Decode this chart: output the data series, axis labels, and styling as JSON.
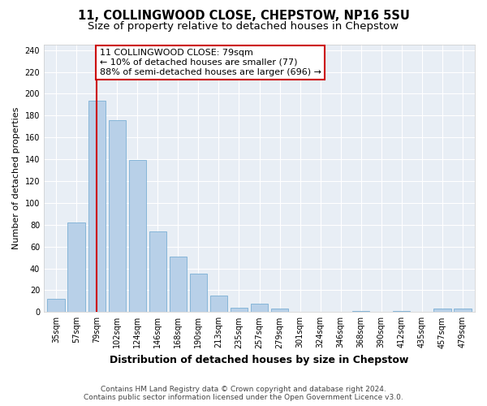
{
  "title": "11, COLLINGWOOD CLOSE, CHEPSTOW, NP16 5SU",
  "subtitle": "Size of property relative to detached houses in Chepstow",
  "xlabel": "Distribution of detached houses by size in Chepstow",
  "ylabel": "Number of detached properties",
  "bar_labels": [
    "35sqm",
    "57sqm",
    "79sqm",
    "102sqm",
    "124sqm",
    "146sqm",
    "168sqm",
    "190sqm",
    "213sqm",
    "235sqm",
    "257sqm",
    "279sqm",
    "301sqm",
    "324sqm",
    "346sqm",
    "368sqm",
    "390sqm",
    "412sqm",
    "435sqm",
    "457sqm",
    "479sqm"
  ],
  "bar_values": [
    12,
    82,
    194,
    176,
    139,
    74,
    51,
    35,
    15,
    4,
    8,
    3,
    0,
    0,
    0,
    1,
    0,
    1,
    0,
    3,
    3
  ],
  "bar_color": "#b8d0e8",
  "vline_x_index": 2,
  "vline_color": "#cc0000",
  "annotation_line1": "11 COLLINGWOOD CLOSE: 79sqm",
  "annotation_line2": "← 10% of detached houses are smaller (77)",
  "annotation_line3": "88% of semi-detached houses are larger (696) →",
  "annotation_box_color": "#ffffff",
  "annotation_box_edgecolor": "#cc0000",
  "ylim": [
    0,
    245
  ],
  "yticks": [
    0,
    20,
    40,
    60,
    80,
    100,
    120,
    140,
    160,
    180,
    200,
    220,
    240
  ],
  "footer_line1": "Contains HM Land Registry data © Crown copyright and database right 2024.",
  "footer_line2": "Contains public sector information licensed under the Open Government Licence v3.0.",
  "bg_color": "#ffffff",
  "plot_bg_color": "#e8eef5",
  "title_fontsize": 10.5,
  "subtitle_fontsize": 9.5,
  "xlabel_fontsize": 9,
  "ylabel_fontsize": 8,
  "tick_fontsize": 7,
  "annotation_fontsize": 8,
  "footer_fontsize": 6.5
}
